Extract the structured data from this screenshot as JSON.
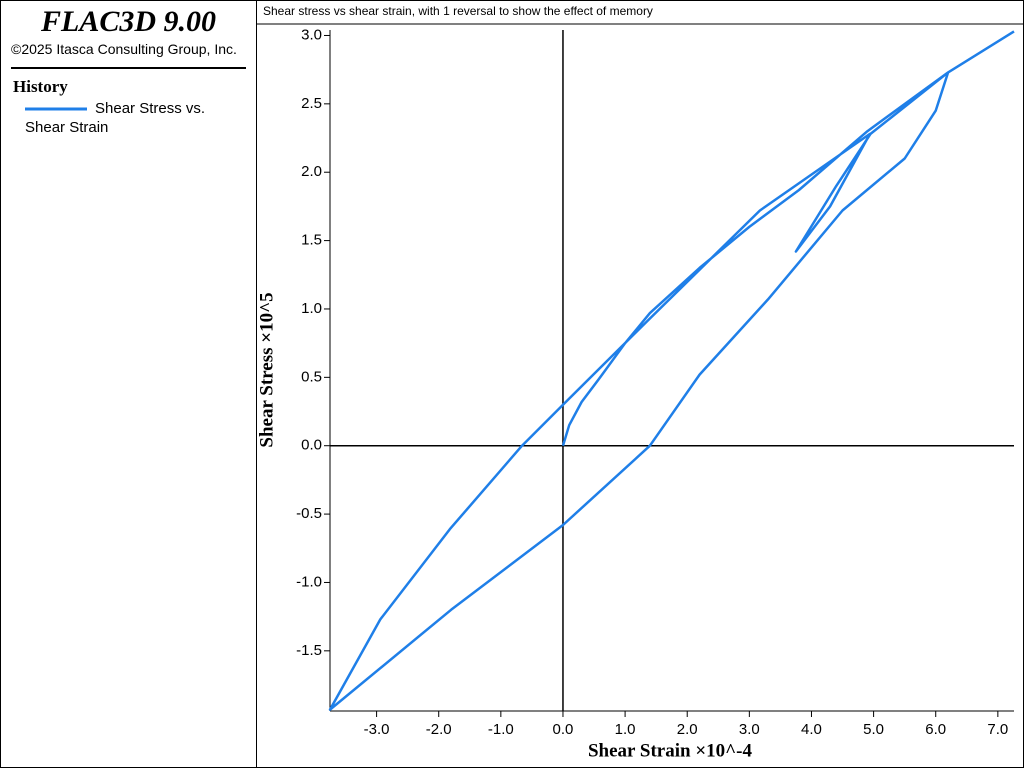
{
  "header": {
    "product": "FLAC3D 9.00",
    "copyright": "©2025 Itasca Consulting Group, Inc."
  },
  "chart_data": {
    "type": "line",
    "title": "Shear stress vs shear strain, with 1 reversal to show the effect of memory",
    "x_label": "Shear Strain ×10^-4",
    "y_label": "Shear Stress ×10^5",
    "legend_title": "History",
    "x": [
      0,
      0.1,
      0.3,
      0.6,
      1.0,
      1.4,
      2.2,
      3.0,
      3.8,
      4.9,
      6.2,
      6.0,
      5.5,
      4.5,
      3.3,
      2.2,
      1.4,
      0,
      -1.8,
      -3.75,
      -2.94,
      -1.82,
      -0.66,
      0,
      1.4,
      3.17,
      4.94,
      4.3,
      3.75,
      4.4,
      4.95,
      6.2,
      7.26
    ],
    "series": [
      {
        "name": "Shear Stress vs. Shear Strain",
        "color": "#1f7fe8",
        "values": [
          0,
          0.15,
          0.32,
          0.5,
          0.75,
          0.97,
          1.3,
          1.6,
          1.87,
          2.3,
          2.73,
          2.45,
          2.1,
          1.72,
          1.07,
          0.52,
          0,
          -0.58,
          -1.2,
          -1.93,
          -1.27,
          -0.61,
          0,
          0.3,
          0.93,
          1.72,
          2.28,
          1.75,
          1.42,
          1.9,
          2.28,
          2.73,
          3.03
        ]
      }
    ],
    "xlim": [
      -3.75,
      7.26
    ],
    "ylim": [
      -1.94,
      3.04
    ],
    "xticks": [
      {
        "value": -3,
        "label": "-3.0"
      },
      {
        "value": -2,
        "label": "-2.0"
      },
      {
        "value": -1,
        "label": "-1.0"
      },
      {
        "value": 0,
        "label": "0.0"
      },
      {
        "value": 1,
        "label": "1.0"
      },
      {
        "value": 2,
        "label": "2.0"
      },
      {
        "value": 3,
        "label": "3.0"
      },
      {
        "value": 4,
        "label": "4.0"
      },
      {
        "value": 5,
        "label": "5.0"
      },
      {
        "value": 6,
        "label": "6.0"
      },
      {
        "value": 7,
        "label": "7.0"
      }
    ],
    "yticks": [
      -1.5,
      {
        "value": -1,
        "label": "-1.0"
      },
      -0.5,
      {
        "value": 0,
        "label": "0.0"
      },
      0.5,
      {
        "value": 1,
        "label": "1.0"
      },
      1.5,
      {
        "value": 2,
        "label": "2.0"
      },
      2.5,
      {
        "value": 3,
        "label": "3.0"
      }
    ]
  }
}
